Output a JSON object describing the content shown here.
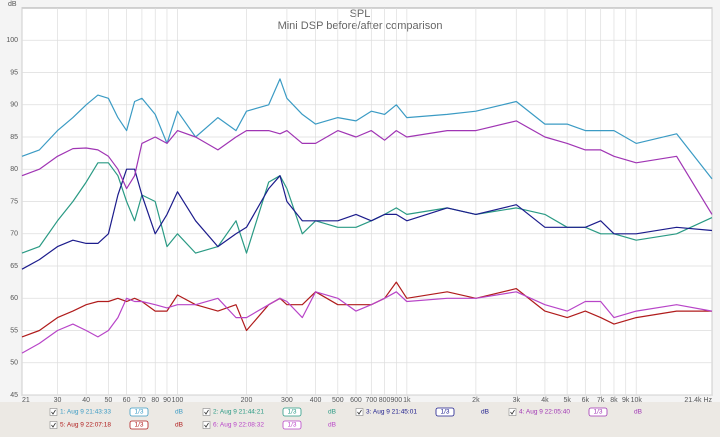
{
  "chart_data": {
    "type": "line",
    "title": "SPL",
    "subtitle": "Mini DSP before/after comparison",
    "y_label": "dB",
    "xscale": "log",
    "grid": true,
    "x": [
      21,
      25,
      30,
      35,
      40,
      45,
      50,
      55,
      60,
      65,
      70,
      80,
      90,
      100,
      120,
      150,
      180,
      200,
      250,
      280,
      300,
      350,
      400,
      500,
      600,
      700,
      800,
      900,
      1000,
      1500,
      2000,
      3000,
      4000,
      5000,
      6000,
      7000,
      8000,
      10000,
      15000,
      21400
    ],
    "xlim": [
      21,
      21400
    ],
    "ylim": [
      45,
      105
    ],
    "xticks": [
      21,
      30,
      40,
      50,
      60,
      70,
      80,
      90,
      100,
      200,
      300,
      400,
      500,
      600,
      700,
      800,
      900,
      {
        "value": 1000,
        "label": "1k"
      },
      {
        "value": 2000,
        "label": "2k"
      },
      {
        "value": 3000,
        "label": "3k"
      },
      {
        "value": 4000,
        "label": "4k"
      },
      {
        "value": 5000,
        "label": "5k"
      },
      {
        "value": 6000,
        "label": "6k"
      },
      {
        "value": 7000,
        "label": "7k"
      },
      {
        "value": 8000,
        "label": "8k"
      },
      {
        "value": 9000,
        "label": "9k"
      },
      {
        "value": 10000,
        "label": "10k"
      },
      {
        "value": 21400,
        "label": "21.4k Hz"
      }
    ],
    "yticks": [
      45,
      50,
      55,
      60,
      65,
      70,
      75,
      80,
      85,
      90,
      95,
      100
    ],
    "series": [
      {
        "name": "1: Aug 9 21:43:33",
        "smoothing": "1/3",
        "unit": "dB",
        "color": "#3b9bc4",
        "values": [
          82,
          83,
          86,
          88,
          90,
          91.5,
          91,
          88,
          86,
          90.5,
          91,
          88.5,
          84,
          89,
          85,
          88,
          86,
          89,
          90,
          94,
          91,
          88.5,
          87,
          88,
          87.5,
          89,
          88.5,
          90,
          88,
          88.5,
          89,
          90.5,
          87,
          87,
          86,
          86,
          86,
          84,
          85.5,
          78.5
        ]
      },
      {
        "name": "2: Aug 9 21:44:21",
        "smoothing": "1/3",
        "unit": "dB",
        "color": "#2a9a84",
        "values": [
          67,
          68,
          72,
          75,
          78,
          81,
          81,
          79,
          75,
          72,
          76,
          75,
          68,
          70,
          67,
          68,
          72,
          67,
          78,
          79,
          77,
          70,
          72,
          71,
          71,
          72,
          73,
          74,
          73,
          74,
          73,
          74,
          73,
          71,
          71,
          70,
          70,
          69,
          70,
          72.5
        ]
      },
      {
        "name": "3: Aug 9 21:45:01",
        "smoothing": "1/3",
        "unit": "dB",
        "color": "#1c1c8c",
        "values": [
          64.5,
          66,
          68,
          69,
          68.5,
          68.5,
          70,
          76,
          80,
          80,
          76,
          70,
          73,
          76.5,
          72,
          68,
          70,
          71,
          77,
          79,
          75,
          72,
          72,
          72,
          73,
          72,
          73,
          73,
          72,
          74,
          73,
          74.5,
          71,
          71,
          71,
          72,
          70,
          70,
          71,
          70.5
        ]
      },
      {
        "name": "4: Aug 9 22:05:40",
        "smoothing": "1/3",
        "unit": "dB",
        "color": "#a035b4",
        "values": [
          79,
          80,
          82,
          83.2,
          83.3,
          83,
          82,
          80,
          77,
          79,
          84,
          85,
          84,
          86,
          85,
          83,
          85,
          86,
          86,
          85.5,
          86,
          84,
          84,
          86,
          85,
          86,
          84.5,
          86,
          85,
          86,
          86,
          87.5,
          85,
          84,
          83,
          83,
          82,
          81,
          82,
          73
        ]
      },
      {
        "name": "5: Aug 9 22:07:18",
        "smoothing": "1/3",
        "unit": "dB",
        "color": "#b01c1c",
        "values": [
          54,
          55,
          57,
          58,
          59,
          59.5,
          59.5,
          60,
          59.5,
          60,
          59.5,
          58,
          58,
          60.5,
          59,
          58,
          59,
          55,
          59,
          60,
          59,
          59,
          61,
          59,
          59,
          59,
          60,
          62.5,
          60,
          61,
          60,
          61.5,
          58,
          57,
          58,
          57,
          56,
          57,
          58,
          58
        ]
      },
      {
        "name": "6: Aug 9 22:08:32",
        "smoothing": "1/3",
        "unit": "dB",
        "color": "#b845c8",
        "values": [
          51.5,
          53,
          55,
          56,
          55,
          54,
          55,
          57,
          60,
          59.5,
          59.5,
          59,
          58.5,
          59,
          59,
          60,
          57,
          57,
          59,
          60,
          59.5,
          57,
          61,
          60,
          58,
          59,
          60,
          61,
          59.5,
          60,
          60,
          61,
          59,
          58,
          59.5,
          59.5,
          57,
          58,
          59,
          58
        ]
      }
    ]
  }
}
